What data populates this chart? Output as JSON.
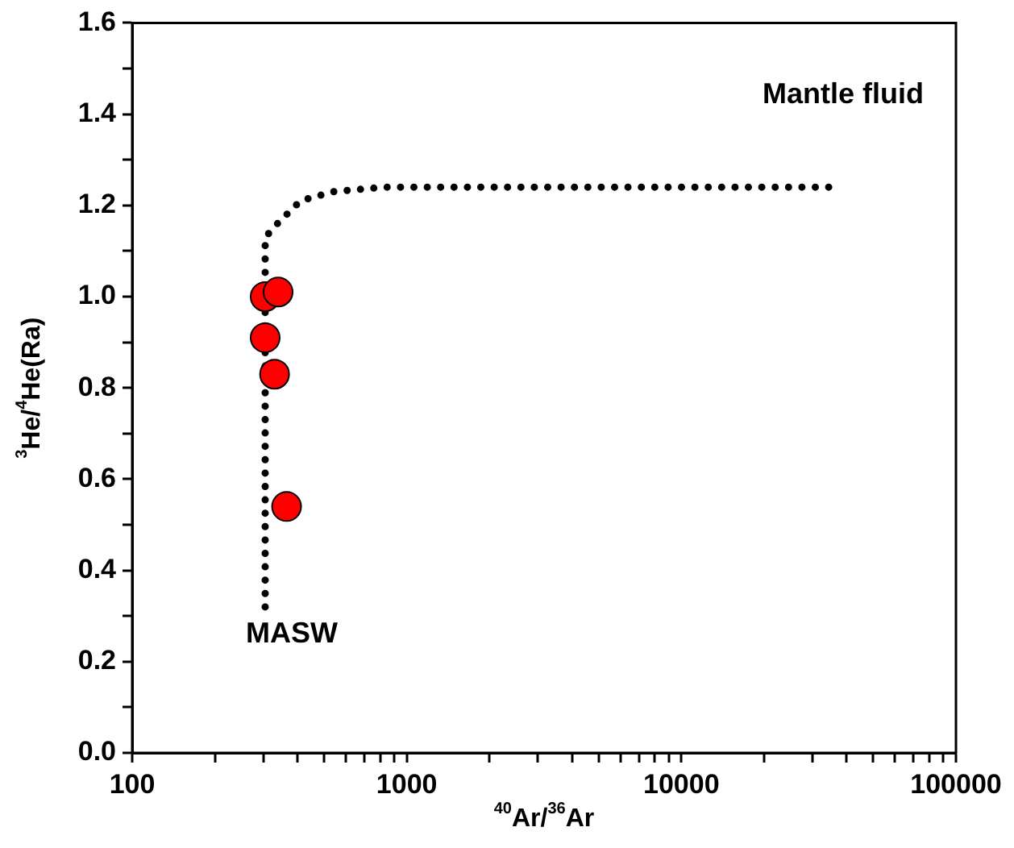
{
  "chart_data": {
    "type": "scatter",
    "xlabel": "$^{40}$Ar/$^{36}$Ar",
    "ylabel": "$^{3}$He/$^{4}$He(Ra)",
    "log": "x",
    "grid": false,
    "legend": false,
    "xlim": [
      100,
      100000
    ],
    "xticks": [
      100,
      {
        "value": 200,
        "label": null
      },
      {
        "value": 300,
        "label": null
      },
      {
        "value": 400,
        "label": null
      },
      {
        "value": 500,
        "label": null
      },
      {
        "value": 600,
        "label": null
      },
      {
        "value": 700,
        "label": null
      },
      {
        "value": 800,
        "label": null
      },
      {
        "value": 900,
        "label": null
      },
      1000,
      {
        "value": 2000,
        "label": null
      },
      {
        "value": 3000,
        "label": null
      },
      {
        "value": 4000,
        "label": null
      },
      {
        "value": 5000,
        "label": null
      },
      {
        "value": 6000,
        "label": null
      },
      {
        "value": 7000,
        "label": null
      },
      {
        "value": 8000,
        "label": null
      },
      {
        "value": 9000,
        "label": null
      },
      10000,
      {
        "value": 20000,
        "label": null
      },
      {
        "value": 30000,
        "label": null
      },
      {
        "value": 40000,
        "label": null
      },
      {
        "value": 50000,
        "label": null
      },
      {
        "value": 60000,
        "label": null
      },
      {
        "value": 70000,
        "label": null
      },
      {
        "value": 80000,
        "label": null
      },
      {
        "value": 90000,
        "label": null
      },
      100000
    ],
    "ylim": [
      0,
      1.6
    ],
    "yticks": [
      {
        "value": 0,
        "label": "0.0"
      },
      {
        "value": 0.1,
        "label": null
      },
      {
        "value": 0.2,
        "label": "0.2"
      },
      {
        "value": 0.3,
        "label": null
      },
      {
        "value": 0.4,
        "label": "0.4"
      },
      {
        "value": 0.5,
        "label": null
      },
      {
        "value": 0.6,
        "label": "0.6"
      },
      {
        "value": 0.7,
        "label": null
      },
      {
        "value": 0.8,
        "label": "0.8"
      },
      {
        "value": 0.9,
        "label": null
      },
      {
        "value": 1.0,
        "label": "1.0"
      },
      {
        "value": 1.1,
        "label": null
      },
      {
        "value": 1.2,
        "label": "1.2"
      },
      {
        "value": 1.3,
        "label": null
      },
      {
        "value": 1.4,
        "label": "1.4"
      },
      {
        "value": 1.5,
        "label": null
      },
      {
        "value": 1.6,
        "label": "1.6"
      }
    ],
    "series": [
      {
        "type": "line",
        "color": "#000000",
        "line_style": "dotted",
        "marker": "none",
        "x": [
          305,
          305,
          305,
          338,
          410,
          540,
          830,
          2000,
          10000,
          35000
        ],
        "values": [
          0.32,
          0.8,
          1.13,
          1.16,
          1.21,
          1.23,
          1.24,
          1.24,
          1.24,
          1.24
        ]
      },
      {
        "color": "#ff0000",
        "marker": "circle",
        "x": [
          305,
          340,
          305,
          330,
          365
        ],
        "values": [
          1.0,
          1.01,
          0.91,
          0.83,
          0.54
        ]
      }
    ],
    "annotations": [
      "Mantle fluid",
      "MASW"
    ]
  }
}
